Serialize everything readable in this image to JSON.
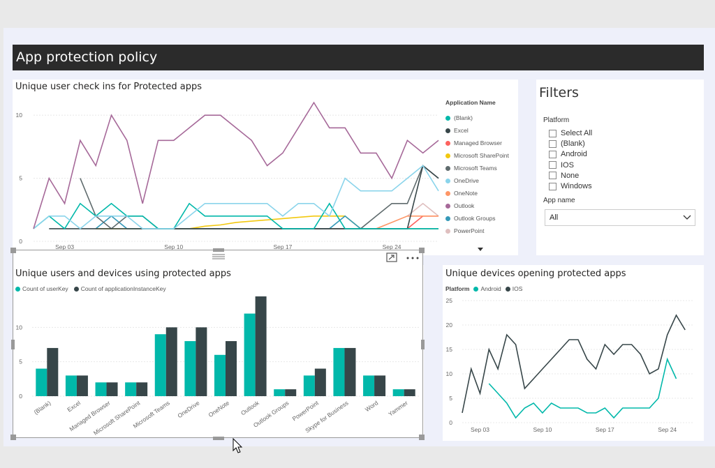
{
  "page_title": "App protection policy",
  "chart1": {
    "title": "Unique user check ins for Protected apps",
    "legend_title": "Application Name",
    "x_ticks": [
      "Sep 03",
      "Sep 10",
      "Sep 17",
      "Sep 24"
    ],
    "y_ticks": [
      "0",
      "5",
      "10"
    ],
    "legend": [
      {
        "name": "(Blank)",
        "color": "#01b8aa"
      },
      {
        "name": "Excel",
        "color": "#374649"
      },
      {
        "name": "Managed Browser",
        "color": "#fd625e"
      },
      {
        "name": "Microsoft SharePoint",
        "color": "#f2c80f"
      },
      {
        "name": "Microsoft Teams",
        "color": "#5f6b6d"
      },
      {
        "name": "OneDrive",
        "color": "#8ad4eb"
      },
      {
        "name": "OneNote",
        "color": "#fe9666"
      },
      {
        "name": "Outlook",
        "color": "#a66999"
      },
      {
        "name": "Outlook Groups",
        "color": "#3599b8"
      },
      {
        "name": "PowerPoint",
        "color": "#dfbfbf"
      }
    ],
    "more_icon": "caret-down-icon"
  },
  "chart2": {
    "title": "Unique users and devices using protected apps",
    "legend": [
      {
        "name": "Count of userKey",
        "color": "#01b8aa"
      },
      {
        "name": "Count of applicationInstanceKey",
        "color": "#374649"
      }
    ],
    "y_ticks": [
      "0",
      "5",
      "10"
    ],
    "icons": [
      "drag-handle-icon",
      "focus-mode-icon",
      "more-options-icon"
    ]
  },
  "chart3": {
    "title": "Unique devices opening protected apps",
    "legend_label": "Platform",
    "legend": [
      {
        "name": "Android",
        "color": "#01b8aa"
      },
      {
        "name": "IOS",
        "color": "#374649"
      }
    ],
    "x_ticks": [
      "Sep 03",
      "Sep 10",
      "Sep 17",
      "Sep 24"
    ],
    "y_ticks": [
      "0",
      "5",
      "10",
      "15",
      "20",
      "25"
    ]
  },
  "filters": {
    "title": "Filters",
    "platform_label": "Platform",
    "platform_options": [
      "Select All",
      "(Blank)",
      "Android",
      "IOS",
      "None",
      "Windows"
    ],
    "app_name_label": "App name",
    "app_name_value": "All"
  },
  "chart_data": [
    {
      "type": "line",
      "title": "Unique user check ins for Protected apps",
      "xlabel": "",
      "ylabel": "",
      "ylim": [
        0,
        12
      ],
      "x": [
        "Sep 01",
        "Sep 02",
        "Sep 03",
        "Sep 04",
        "Sep 05",
        "Sep 06",
        "Sep 07",
        "Sep 08",
        "Sep 09",
        "Sep 10",
        "Sep 11",
        "Sep 12",
        "Sep 13",
        "Sep 14",
        "Sep 15",
        "Sep 16",
        "Sep 17",
        "Sep 18",
        "Sep 19",
        "Sep 20",
        "Sep 21",
        "Sep 22",
        "Sep 23",
        "Sep 24",
        "Sep 25",
        "Sep 26",
        "Sep 27"
      ],
      "series": [
        {
          "name": "Outlook",
          "values": [
            1,
            5,
            3,
            8,
            6,
            10,
            8,
            3,
            8,
            8,
            9,
            10,
            10,
            9,
            8,
            6,
            7,
            9,
            11,
            9,
            9,
            7,
            7,
            5,
            8,
            7,
            8
          ]
        },
        {
          "name": "OneDrive",
          "values": [
            1,
            2,
            2,
            1,
            2,
            2,
            2,
            1,
            1,
            1,
            2,
            3,
            3,
            3,
            3,
            3,
            2,
            3,
            3,
            2,
            5,
            4,
            4,
            4,
            5,
            6,
            4
          ]
        },
        {
          "name": "(Blank)",
          "values": [
            1,
            2,
            1,
            3,
            2,
            3,
            2,
            2,
            1,
            1,
            3,
            2,
            2,
            2,
            2,
            2,
            1,
            1,
            1,
            3,
            1,
            1,
            1,
            1,
            1,
            1,
            1
          ]
        },
        {
          "name": "Excel",
          "values": [
            null,
            1,
            1,
            1,
            1,
            1,
            1,
            1,
            1,
            1,
            1,
            1,
            1,
            1,
            1,
            1,
            1,
            1,
            1,
            1,
            1,
            1,
            1,
            1,
            1,
            6,
            5
          ]
        },
        {
          "name": "Microsoft Teams",
          "values": [
            null,
            null,
            null,
            5,
            2,
            1,
            2,
            2,
            1,
            1,
            1,
            1,
            1,
            1,
            1,
            1,
            1,
            1,
            1,
            1,
            1,
            1,
            2,
            3,
            3,
            6,
            5
          ]
        },
        {
          "name": "Outlook Groups",
          "values": [
            null,
            null,
            null,
            null,
            1,
            2,
            1,
            1,
            1,
            1,
            1,
            1,
            1,
            1,
            1,
            1,
            1,
            1,
            1,
            1,
            2,
            1,
            1,
            1,
            1,
            1,
            1
          ]
        },
        {
          "name": "Microsoft SharePoint",
          "values": [
            null,
            null,
            null,
            null,
            1,
            1,
            1,
            1,
            1,
            1,
            1,
            1.2,
            1.3,
            1.5,
            1.6,
            1.7,
            1.8,
            1.9,
            2,
            2,
            2,
            1,
            1,
            1,
            1,
            1,
            1
          ]
        },
        {
          "name": "OneNote",
          "values": [
            null,
            null,
            null,
            null,
            null,
            null,
            null,
            null,
            null,
            1,
            1,
            1,
            1,
            1,
            1,
            1,
            1,
            1,
            1,
            1,
            1,
            1,
            1,
            1.5,
            2,
            2,
            2
          ]
        },
        {
          "name": "Managed Browser",
          "values": [
            null,
            null,
            null,
            null,
            null,
            null,
            null,
            null,
            null,
            null,
            null,
            null,
            null,
            null,
            null,
            null,
            null,
            null,
            null,
            null,
            null,
            1,
            1,
            1,
            1,
            2,
            2
          ]
        },
        {
          "name": "PowerPoint",
          "values": [
            null,
            null,
            null,
            null,
            null,
            null,
            null,
            null,
            null,
            null,
            null,
            null,
            null,
            null,
            null,
            null,
            null,
            null,
            null,
            null,
            null,
            null,
            null,
            null,
            2,
            3,
            2
          ]
        }
      ]
    },
    {
      "type": "bar",
      "title": "Unique users and devices using protected apps",
      "categories": [
        "(Blank)",
        "Excel",
        "Managed Browser",
        "Microsoft SharePoint",
        "Microsoft Teams",
        "OneDrive",
        "OneNote",
        "Outlook",
        "Outlook Groups",
        "PowerPoint",
        "Skype for Business",
        "Word",
        "Yammer"
      ],
      "series": [
        {
          "name": "Count of userKey",
          "values": [
            4,
            3,
            2,
            2,
            9,
            8,
            6,
            12,
            1,
            3,
            7,
            3,
            1
          ]
        },
        {
          "name": "Count of applicationInstanceKey",
          "values": [
            7,
            3,
            2,
            2,
            10,
            10,
            8,
            14.5,
            1,
            4,
            7,
            3,
            1
          ]
        }
      ],
      "ylim": [
        0,
        15
      ]
    },
    {
      "type": "line",
      "title": "Unique devices opening protected apps",
      "ylim": [
        0,
        25
      ],
      "x": [
        "Sep 01",
        "Sep 02",
        "Sep 03",
        "Sep 04",
        "Sep 05",
        "Sep 06",
        "Sep 07",
        "Sep 08",
        "Sep 09",
        "Sep 10",
        "Sep 11",
        "Sep 12",
        "Sep 13",
        "Sep 14",
        "Sep 15",
        "Sep 16",
        "Sep 17",
        "Sep 18",
        "Sep 19",
        "Sep 20",
        "Sep 21",
        "Sep 22",
        "Sep 23",
        "Sep 24",
        "Sep 25",
        "Sep 26",
        "Sep 27"
      ],
      "series": [
        {
          "name": "IOS",
          "values": [
            2,
            11,
            6,
            15,
            11,
            18,
            16,
            7,
            9,
            11,
            13,
            15,
            17,
            17,
            13,
            11,
            16,
            14,
            16,
            16,
            14,
            10,
            11,
            18,
            22,
            19,
            null
          ]
        },
        {
          "name": "Android",
          "values": [
            null,
            null,
            null,
            8,
            6,
            4,
            1,
            3,
            4,
            2,
            4,
            3,
            3,
            3,
            2,
            2,
            3,
            1,
            3,
            3,
            3,
            3,
            5,
            13,
            9,
            null,
            null
          ]
        }
      ]
    }
  ]
}
